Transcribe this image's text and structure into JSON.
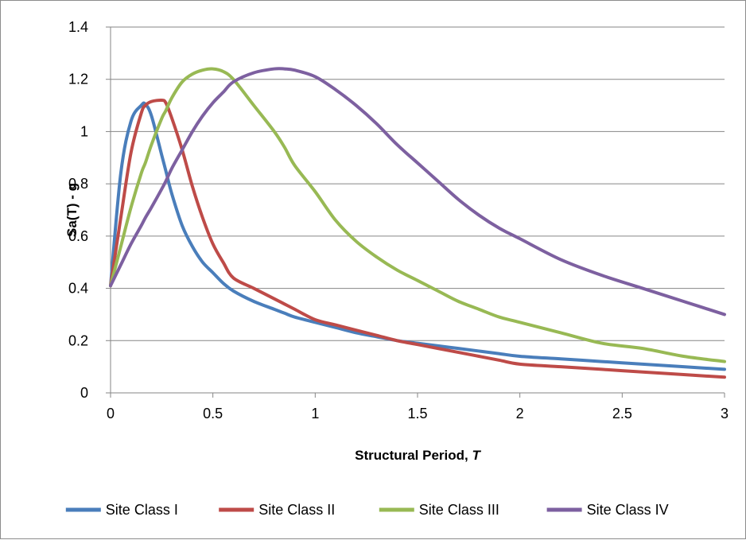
{
  "chart_data": {
    "type": "line",
    "title": "",
    "xlabel": "Structural Period, ",
    "xlabel_italic": "T",
    "ylabel": "Sa(T) - g",
    "xlim": [
      0,
      3
    ],
    "ylim": [
      0,
      1.4
    ],
    "xticks": [
      "0",
      "0.5",
      "1",
      "1.5",
      "2",
      "2.5",
      "3"
    ],
    "yticks": [
      "0",
      "0.2",
      "0.4",
      "0.6",
      "0.8",
      "1",
      "1.2",
      "1.4"
    ],
    "grid": "horizontal",
    "legend_position": "bottom",
    "x": [
      0,
      0.05,
      0.1,
      0.15,
      0.17,
      0.2,
      0.25,
      0.27,
      0.3,
      0.35,
      0.4,
      0.45,
      0.5,
      0.55,
      0.6,
      0.7,
      0.8,
      0.85,
      0.9,
      1.0,
      1.1,
      1.2,
      1.3,
      1.4,
      1.5,
      1.6,
      1.7,
      1.8,
      1.9,
      2.0,
      2.2,
      2.4,
      2.6,
      2.8,
      3.0
    ],
    "series": [
      {
        "name": "Site Class I",
        "color": "#4a7ebb",
        "values": [
          0.41,
          0.84,
          1.04,
          1.1,
          1.105,
          1.06,
          0.91,
          0.85,
          0.76,
          0.64,
          0.56,
          0.5,
          0.46,
          0.42,
          0.39,
          0.35,
          0.32,
          0.305,
          0.29,
          0.27,
          0.25,
          0.23,
          0.215,
          0.2,
          0.19,
          0.18,
          0.17,
          0.16,
          0.15,
          0.14,
          0.13,
          0.12,
          0.11,
          0.1,
          0.09
        ]
      },
      {
        "name": "Site Class II",
        "color": "#be4b48",
        "values": [
          0.41,
          0.67,
          0.92,
          1.07,
          1.1,
          1.115,
          1.12,
          1.11,
          1.05,
          0.93,
          0.79,
          0.67,
          0.57,
          0.5,
          0.44,
          0.4,
          0.36,
          0.34,
          0.32,
          0.28,
          0.26,
          0.24,
          0.22,
          0.2,
          0.185,
          0.17,
          0.155,
          0.14,
          0.125,
          0.11,
          0.1,
          0.09,
          0.08,
          0.07,
          0.06
        ]
      },
      {
        "name": "Site Class III",
        "color": "#98b954",
        "values": [
          0.41,
          0.56,
          0.71,
          0.84,
          0.88,
          0.95,
          1.05,
          1.08,
          1.13,
          1.19,
          1.22,
          1.235,
          1.24,
          1.23,
          1.2,
          1.1,
          1.0,
          0.94,
          0.87,
          0.77,
          0.66,
          0.58,
          0.52,
          0.47,
          0.43,
          0.39,
          0.35,
          0.32,
          0.29,
          0.27,
          0.23,
          0.19,
          0.17,
          0.14,
          0.12
        ]
      },
      {
        "name": "Site Class IV",
        "color": "#7d60a0",
        "values": [
          0.41,
          0.49,
          0.57,
          0.64,
          0.67,
          0.71,
          0.78,
          0.81,
          0.86,
          0.93,
          1.0,
          1.06,
          1.11,
          1.15,
          1.19,
          1.225,
          1.24,
          1.24,
          1.235,
          1.21,
          1.16,
          1.1,
          1.03,
          0.95,
          0.88,
          0.81,
          0.74,
          0.68,
          0.63,
          0.59,
          0.51,
          0.45,
          0.4,
          0.35,
          0.3
        ]
      }
    ]
  }
}
